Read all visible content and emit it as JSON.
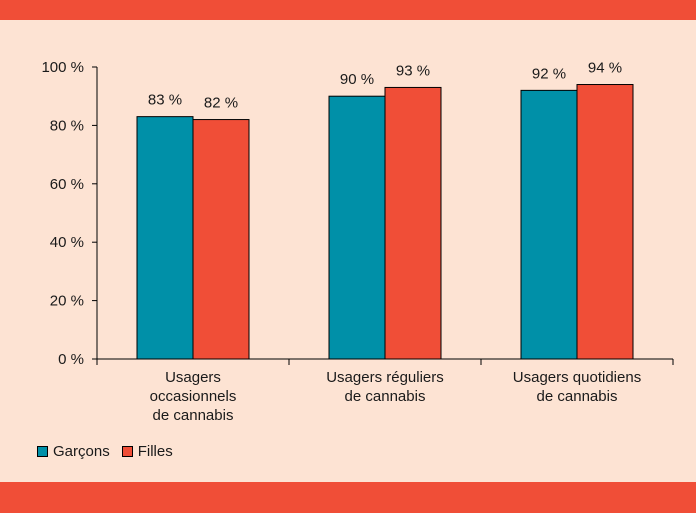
{
  "colors": {
    "background": "#fde3d3",
    "band": "#f04e37",
    "garcons": "#0090a8",
    "filles": "#f04e37"
  },
  "chart_data": {
    "type": "bar",
    "categories": [
      [
        "Usagers",
        "occasionnels",
        "de cannabis"
      ],
      [
        "Usagers réguliers",
        "de cannabis"
      ],
      [
        "Usagers quotidiens",
        "de cannabis"
      ]
    ],
    "series": [
      {
        "name": "Garçons",
        "values": [
          83,
          90,
          92
        ],
        "labels": [
          "83 %",
          "90 %",
          "92 %"
        ],
        "color": "#0090a8"
      },
      {
        "name": "Filles",
        "values": [
          82,
          93,
          94
        ],
        "labels": [
          "82 %",
          "93 %",
          "94 %"
        ],
        "color": "#f04e37"
      }
    ],
    "yticks": [
      "0 %",
      "20 %",
      "40 %",
      "60 %",
      "80 %",
      "100 %"
    ],
    "ylim": [
      0,
      100
    ],
    "legend_position": "bottom-left",
    "grid": false
  }
}
